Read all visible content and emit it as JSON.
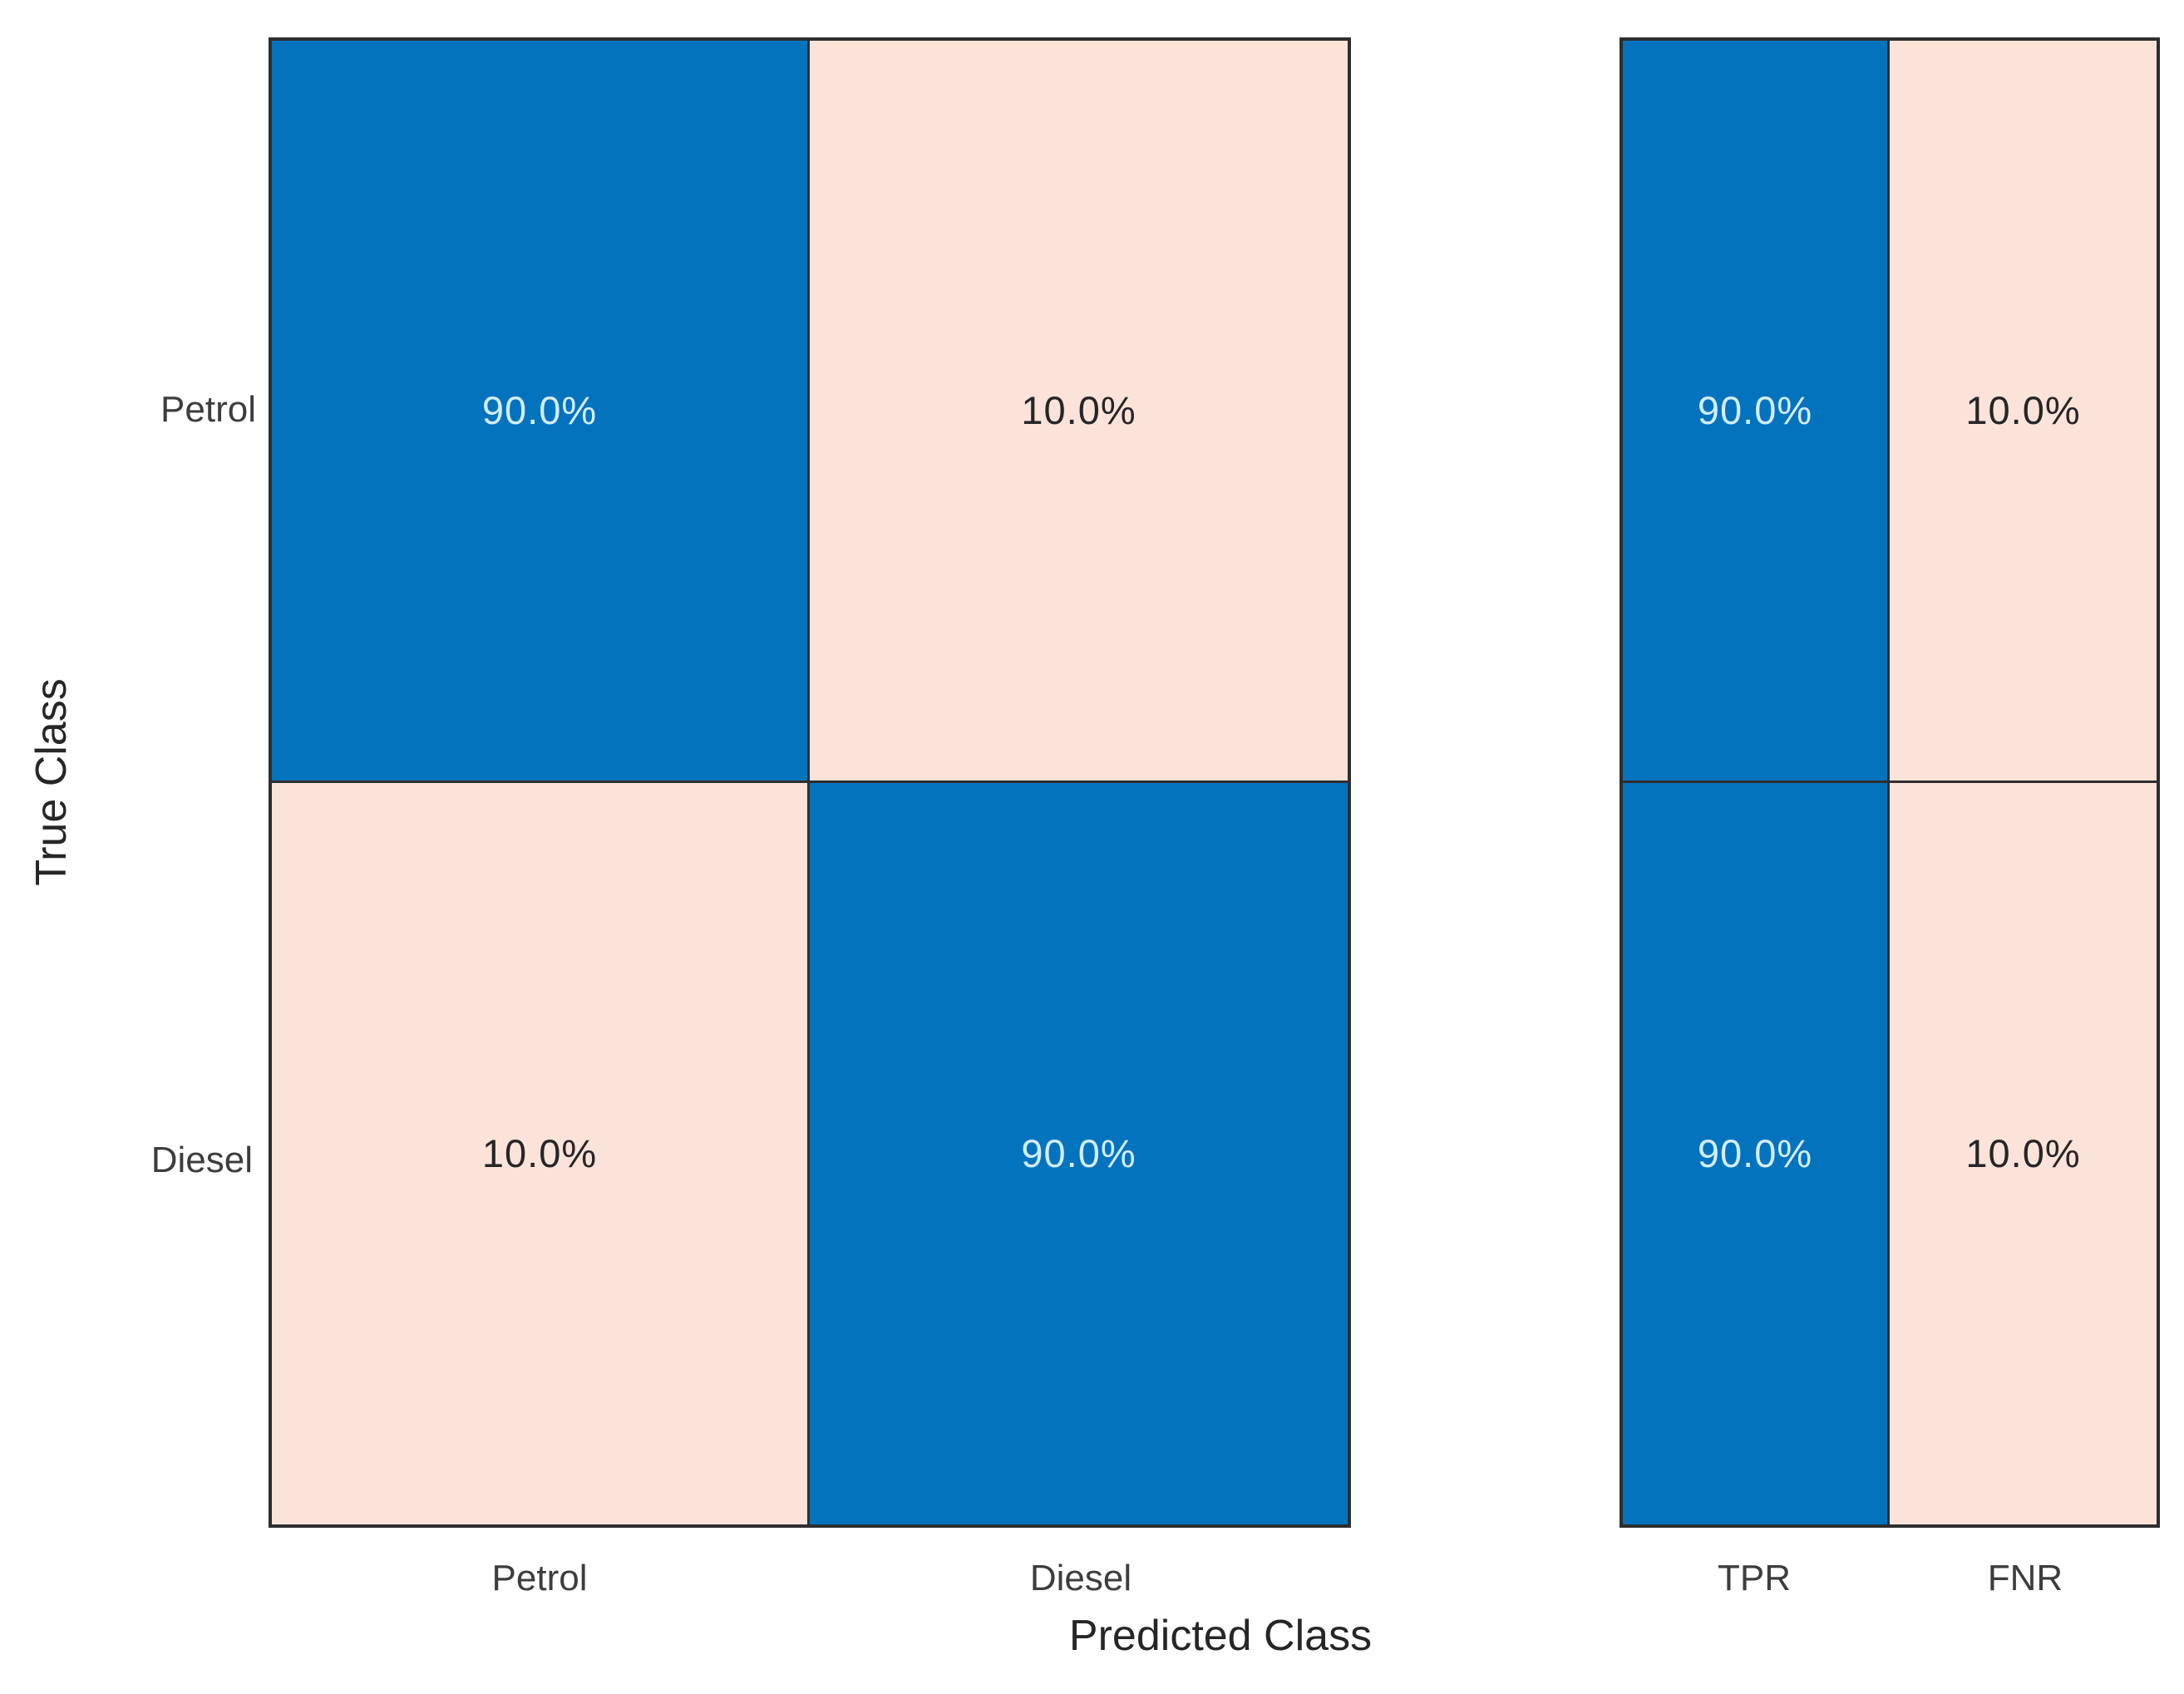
{
  "chart_data": {
    "type": "heatmap",
    "subtype": "confusion-matrix",
    "title": "",
    "xlabel": "Predicted Class",
    "ylabel": "True Class",
    "rows": [
      "Petrol",
      "Diesel"
    ],
    "columns": [
      "Petrol",
      "Diesel"
    ],
    "values_percent": [
      [
        90.0,
        10.0
      ],
      [
        10.0,
        90.0
      ]
    ],
    "cell_labels": [
      [
        "90.0%",
        "10.0%"
      ],
      [
        "10.0%",
        "90.0%"
      ]
    ],
    "row_summary": {
      "columns": [
        "TPR",
        "FNR"
      ],
      "values_percent": [
        [
          90.0,
          10.0
        ],
        [
          90.0,
          10.0
        ]
      ],
      "cell_labels": [
        [
          "90.0%",
          "10.0%"
        ],
        [
          "90.0%",
          "10.0%"
        ]
      ]
    },
    "layout": {
      "grid": "off",
      "legend": "none",
      "normalization": "row-normalized percentages"
    },
    "colors": {
      "high_cell_fill": "#0473BE",
      "low_cell_fill": "#FBE3D9",
      "text_on_high": "#D3EDFB",
      "text_on_low": "#262626",
      "grid_line": "#2e2e2e",
      "tick_label": "#3d3d3d",
      "axis_label": "#262626",
      "background": "#ffffff"
    }
  }
}
